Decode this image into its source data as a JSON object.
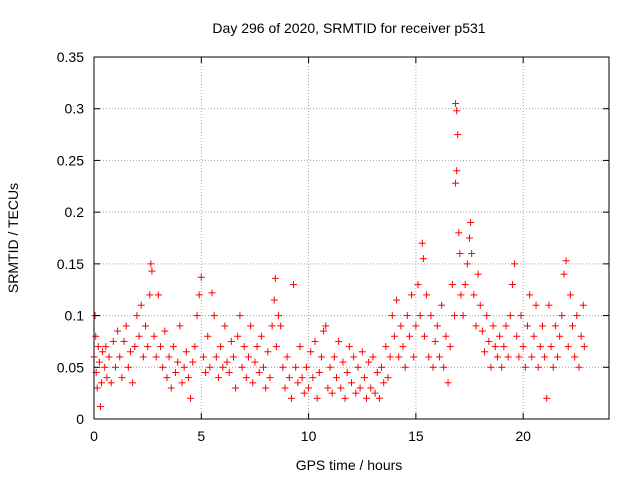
{
  "chart_data": {
    "type": "scatter",
    "title": "Day 296 of 2020, SRMTID for receiver p531",
    "xlabel": "GPS time / hours",
    "ylabel": "SRMTID / TECUs",
    "xlim": [
      0,
      24
    ],
    "ylim": [
      0,
      0.35
    ],
    "xticks": [
      0,
      5,
      10,
      15,
      20
    ],
    "xtick_labels": [
      "0",
      "5",
      "10",
      "15",
      "20"
    ],
    "yticks": [
      0,
      0.05,
      0.1,
      0.15,
      0.2,
      0.25,
      0.3,
      0.35
    ],
    "ytick_labels": [
      "0",
      "0.05",
      "0.1",
      "0.15",
      "0.2",
      "0.25",
      "0.3",
      "0.35"
    ],
    "grid": true,
    "marker": "plus",
    "marker_color": "#ff0000",
    "grid_color": "#a0a0a0",
    "series": [
      {
        "name": "SRMTID",
        "points": [
          [
            0.0,
            0.06
          ],
          [
            0.05,
            0.1
          ],
          [
            0.08,
            0.08
          ],
          [
            0.1,
            0.045
          ],
          [
            0.15,
            0.03
          ],
          [
            0.2,
            0.07
          ],
          [
            0.25,
            0.055
          ],
          [
            0.3,
            0.012
          ],
          [
            0.35,
            0.035
          ],
          [
            0.4,
            0.065
          ],
          [
            0.5,
            0.05
          ],
          [
            0.55,
            0.07
          ],
          [
            0.6,
            0.04
          ],
          [
            0.7,
            0.06
          ],
          [
            0.8,
            0.035
          ],
          [
            0.9,
            0.075
          ],
          [
            1.0,
            0.05
          ],
          [
            1.1,
            0.085
          ],
          [
            1.2,
            0.06
          ],
          [
            1.3,
            0.04
          ],
          [
            1.4,
            0.075
          ],
          [
            1.5,
            0.09
          ],
          [
            1.6,
            0.05
          ],
          [
            1.7,
            0.065
          ],
          [
            1.8,
            0.035
          ],
          [
            1.9,
            0.07
          ],
          [
            2.0,
            0.1
          ],
          [
            2.1,
            0.08
          ],
          [
            2.2,
            0.11
          ],
          [
            2.3,
            0.06
          ],
          [
            2.4,
            0.09
          ],
          [
            2.5,
            0.07
          ],
          [
            2.6,
            0.12
          ],
          [
            2.65,
            0.15
          ],
          [
            2.7,
            0.143
          ],
          [
            2.8,
            0.08
          ],
          [
            2.9,
            0.06
          ],
          [
            3.0,
            0.12
          ],
          [
            3.1,
            0.07
          ],
          [
            3.2,
            0.05
          ],
          [
            3.3,
            0.085
          ],
          [
            3.4,
            0.04
          ],
          [
            3.5,
            0.06
          ],
          [
            3.6,
            0.03
          ],
          [
            3.7,
            0.07
          ],
          [
            3.8,
            0.045
          ],
          [
            3.9,
            0.055
          ],
          [
            4.0,
            0.09
          ],
          [
            4.1,
            0.035
          ],
          [
            4.2,
            0.05
          ],
          [
            4.3,
            0.065
          ],
          [
            4.4,
            0.04
          ],
          [
            4.5,
            0.02
          ],
          [
            4.6,
            0.055
          ],
          [
            4.7,
            0.07
          ],
          [
            4.8,
            0.1
          ],
          [
            4.9,
            0.12
          ],
          [
            5.0,
            0.137
          ],
          [
            5.1,
            0.06
          ],
          [
            5.2,
            0.045
          ],
          [
            5.3,
            0.08
          ],
          [
            5.4,
            0.05
          ],
          [
            5.5,
            0.122
          ],
          [
            5.6,
            0.1
          ],
          [
            5.7,
            0.06
          ],
          [
            5.8,
            0.04
          ],
          [
            5.9,
            0.07
          ],
          [
            6.0,
            0.05
          ],
          [
            6.1,
            0.09
          ],
          [
            6.2,
            0.055
          ],
          [
            6.3,
            0.045
          ],
          [
            6.4,
            0.075
          ],
          [
            6.5,
            0.06
          ],
          [
            6.6,
            0.03
          ],
          [
            6.7,
            0.08
          ],
          [
            6.8,
            0.1
          ],
          [
            6.9,
            0.05
          ],
          [
            7.0,
            0.07
          ],
          [
            7.1,
            0.04
          ],
          [
            7.2,
            0.06
          ],
          [
            7.3,
            0.09
          ],
          [
            7.4,
            0.035
          ],
          [
            7.5,
            0.055
          ],
          [
            7.6,
            0.07
          ],
          [
            7.7,
            0.045
          ],
          [
            7.8,
            0.08
          ],
          [
            7.9,
            0.05
          ],
          [
            8.0,
            0.03
          ],
          [
            8.1,
            0.065
          ],
          [
            8.2,
            0.04
          ],
          [
            8.3,
            0.09
          ],
          [
            8.4,
            0.115
          ],
          [
            8.45,
            0.136
          ],
          [
            8.5,
            0.07
          ],
          [
            8.6,
            0.1
          ],
          [
            8.7,
            0.09
          ],
          [
            8.8,
            0.05
          ],
          [
            8.9,
            0.03
          ],
          [
            9.0,
            0.06
          ],
          [
            9.1,
            0.04
          ],
          [
            9.2,
            0.02
          ],
          [
            9.3,
            0.13
          ],
          [
            9.4,
            0.05
          ],
          [
            9.5,
            0.035
          ],
          [
            9.6,
            0.07
          ],
          [
            9.7,
            0.04
          ],
          [
            9.8,
            0.025
          ],
          [
            9.9,
            0.05
          ],
          [
            10.0,
            0.03
          ],
          [
            10.1,
            0.065
          ],
          [
            10.2,
            0.04
          ],
          [
            10.3,
            0.075
          ],
          [
            10.4,
            0.02
          ],
          [
            10.5,
            0.045
          ],
          [
            10.6,
            0.06
          ],
          [
            10.7,
            0.085
          ],
          [
            10.8,
            0.09
          ],
          [
            10.9,
            0.03
          ],
          [
            11.0,
            0.05
          ],
          [
            11.1,
            0.025
          ],
          [
            11.2,
            0.06
          ],
          [
            11.3,
            0.04
          ],
          [
            11.4,
            0.075
          ],
          [
            11.5,
            0.03
          ],
          [
            11.6,
            0.055
          ],
          [
            11.7,
            0.02
          ],
          [
            11.8,
            0.045
          ],
          [
            11.9,
            0.07
          ],
          [
            12.0,
            0.035
          ],
          [
            12.1,
            0.06
          ],
          [
            12.2,
            0.025
          ],
          [
            12.3,
            0.05
          ],
          [
            12.4,
            0.03
          ],
          [
            12.5,
            0.065
          ],
          [
            12.6,
            0.04
          ],
          [
            12.7,
            0.02
          ],
          [
            12.8,
            0.055
          ],
          [
            12.9,
            0.03
          ],
          [
            13.0,
            0.06
          ],
          [
            13.1,
            0.025
          ],
          [
            13.2,
            0.045
          ],
          [
            13.3,
            0.02
          ],
          [
            13.4,
            0.05
          ],
          [
            13.5,
            0.035
          ],
          [
            13.6,
            0.07
          ],
          [
            13.7,
            0.04
          ],
          [
            13.8,
            0.06
          ],
          [
            13.9,
            0.1
          ],
          [
            14.0,
            0.08
          ],
          [
            14.1,
            0.115
          ],
          [
            14.2,
            0.06
          ],
          [
            14.3,
            0.09
          ],
          [
            14.4,
            0.07
          ],
          [
            14.5,
            0.05
          ],
          [
            14.6,
            0.1
          ],
          [
            14.7,
            0.08
          ],
          [
            14.8,
            0.12
          ],
          [
            14.9,
            0.06
          ],
          [
            15.0,
            0.09
          ],
          [
            15.1,
            0.13
          ],
          [
            15.2,
            0.1
          ],
          [
            15.3,
            0.17
          ],
          [
            15.35,
            0.155
          ],
          [
            15.4,
            0.08
          ],
          [
            15.5,
            0.12
          ],
          [
            15.6,
            0.06
          ],
          [
            15.7,
            0.1
          ],
          [
            15.8,
            0.05
          ],
          [
            15.9,
            0.075
          ],
          [
            16.0,
            0.09
          ],
          [
            16.1,
            0.06
          ],
          [
            16.2,
            0.11
          ],
          [
            16.3,
            0.05
          ],
          [
            16.4,
            0.08
          ],
          [
            16.5,
            0.035
          ],
          [
            16.6,
            0.07
          ],
          [
            16.7,
            0.13
          ],
          [
            16.8,
            0.1
          ],
          [
            16.85,
            0.305
          ],
          [
            16.9,
            0.298
          ],
          [
            16.95,
            0.275
          ],
          [
            16.9,
            0.24
          ],
          [
            16.85,
            0.228
          ],
          [
            17.0,
            0.18
          ],
          [
            17.05,
            0.16
          ],
          [
            17.1,
            0.12
          ],
          [
            17.2,
            0.1
          ],
          [
            17.3,
            0.13
          ],
          [
            17.4,
            0.15
          ],
          [
            17.5,
            0.175
          ],
          [
            17.55,
            0.19
          ],
          [
            17.6,
            0.16
          ],
          [
            17.7,
            0.12
          ],
          [
            17.8,
            0.09
          ],
          [
            17.9,
            0.14
          ],
          [
            18.0,
            0.11
          ],
          [
            18.1,
            0.085
          ],
          [
            18.2,
            0.065
          ],
          [
            18.3,
            0.1
          ],
          [
            18.4,
            0.075
          ],
          [
            18.5,
            0.05
          ],
          [
            18.6,
            0.09
          ],
          [
            18.7,
            0.07
          ],
          [
            18.8,
            0.06
          ],
          [
            18.9,
            0.08
          ],
          [
            19.0,
            0.05
          ],
          [
            19.1,
            0.07
          ],
          [
            19.2,
            0.09
          ],
          [
            19.3,
            0.06
          ],
          [
            19.4,
            0.1
          ],
          [
            19.5,
            0.13
          ],
          [
            19.6,
            0.15
          ],
          [
            19.7,
            0.08
          ],
          [
            19.8,
            0.06
          ],
          [
            19.9,
            0.1
          ],
          [
            20.0,
            0.07
          ],
          [
            20.1,
            0.05
          ],
          [
            20.2,
            0.09
          ],
          [
            20.3,
            0.12
          ],
          [
            20.4,
            0.06
          ],
          [
            20.5,
            0.08
          ],
          [
            20.6,
            0.11
          ],
          [
            20.7,
            0.05
          ],
          [
            20.8,
            0.07
          ],
          [
            20.9,
            0.09
          ],
          [
            21.0,
            0.06
          ],
          [
            21.1,
            0.02
          ],
          [
            21.2,
            0.11
          ],
          [
            21.3,
            0.07
          ],
          [
            21.4,
            0.05
          ],
          [
            21.5,
            0.09
          ],
          [
            21.6,
            0.06
          ],
          [
            21.7,
            0.08
          ],
          [
            21.8,
            0.1
          ],
          [
            21.9,
            0.14
          ],
          [
            22.0,
            0.153
          ],
          [
            22.1,
            0.07
          ],
          [
            22.2,
            0.12
          ],
          [
            22.3,
            0.09
          ],
          [
            22.4,
            0.06
          ],
          [
            22.5,
            0.1
          ],
          [
            22.6,
            0.05
          ],
          [
            22.7,
            0.08
          ],
          [
            22.8,
            0.11
          ],
          [
            22.85,
            0.07
          ]
        ]
      }
    ]
  }
}
